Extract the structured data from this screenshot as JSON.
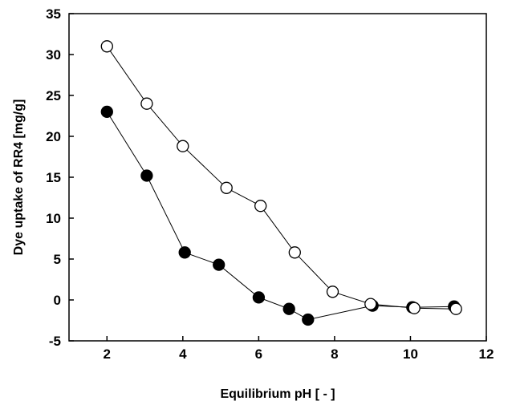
{
  "chart_data": {
    "type": "scatter",
    "title": "",
    "xlabel": "Equilibrium pH [ - ]",
    "ylabel": "Dye uptake of RR4 [mg/g]",
    "xlim": [
      1,
      12
    ],
    "ylim": [
      -5,
      35
    ],
    "xticks": [
      "2",
      "4",
      "6",
      "8",
      "10",
      "12"
    ],
    "yticks": [
      "-5",
      "0",
      "5",
      "10",
      "15",
      "20",
      "25",
      "30",
      "35"
    ],
    "grid": false,
    "legend": "none",
    "series": [
      {
        "marker": "filled-circle",
        "color": "#000000",
        "x": [
          2.0,
          3.05,
          4.05,
          4.95,
          6.0,
          6.8,
          7.3,
          9.0,
          10.05,
          11.15
        ],
        "y": [
          23.0,
          15.2,
          5.8,
          4.3,
          0.3,
          -1.1,
          -2.4,
          -0.7,
          -0.9,
          -0.8
        ]
      },
      {
        "marker": "open-circle",
        "color": "#000000",
        "x": [
          2.0,
          3.05,
          4.0,
          5.15,
          6.05,
          6.95,
          7.95,
          8.95,
          10.1,
          11.2
        ],
        "y": [
          31.0,
          24.0,
          18.8,
          13.7,
          11.5,
          5.8,
          1.0,
          -0.5,
          -1.0,
          -1.1
        ]
      }
    ]
  }
}
